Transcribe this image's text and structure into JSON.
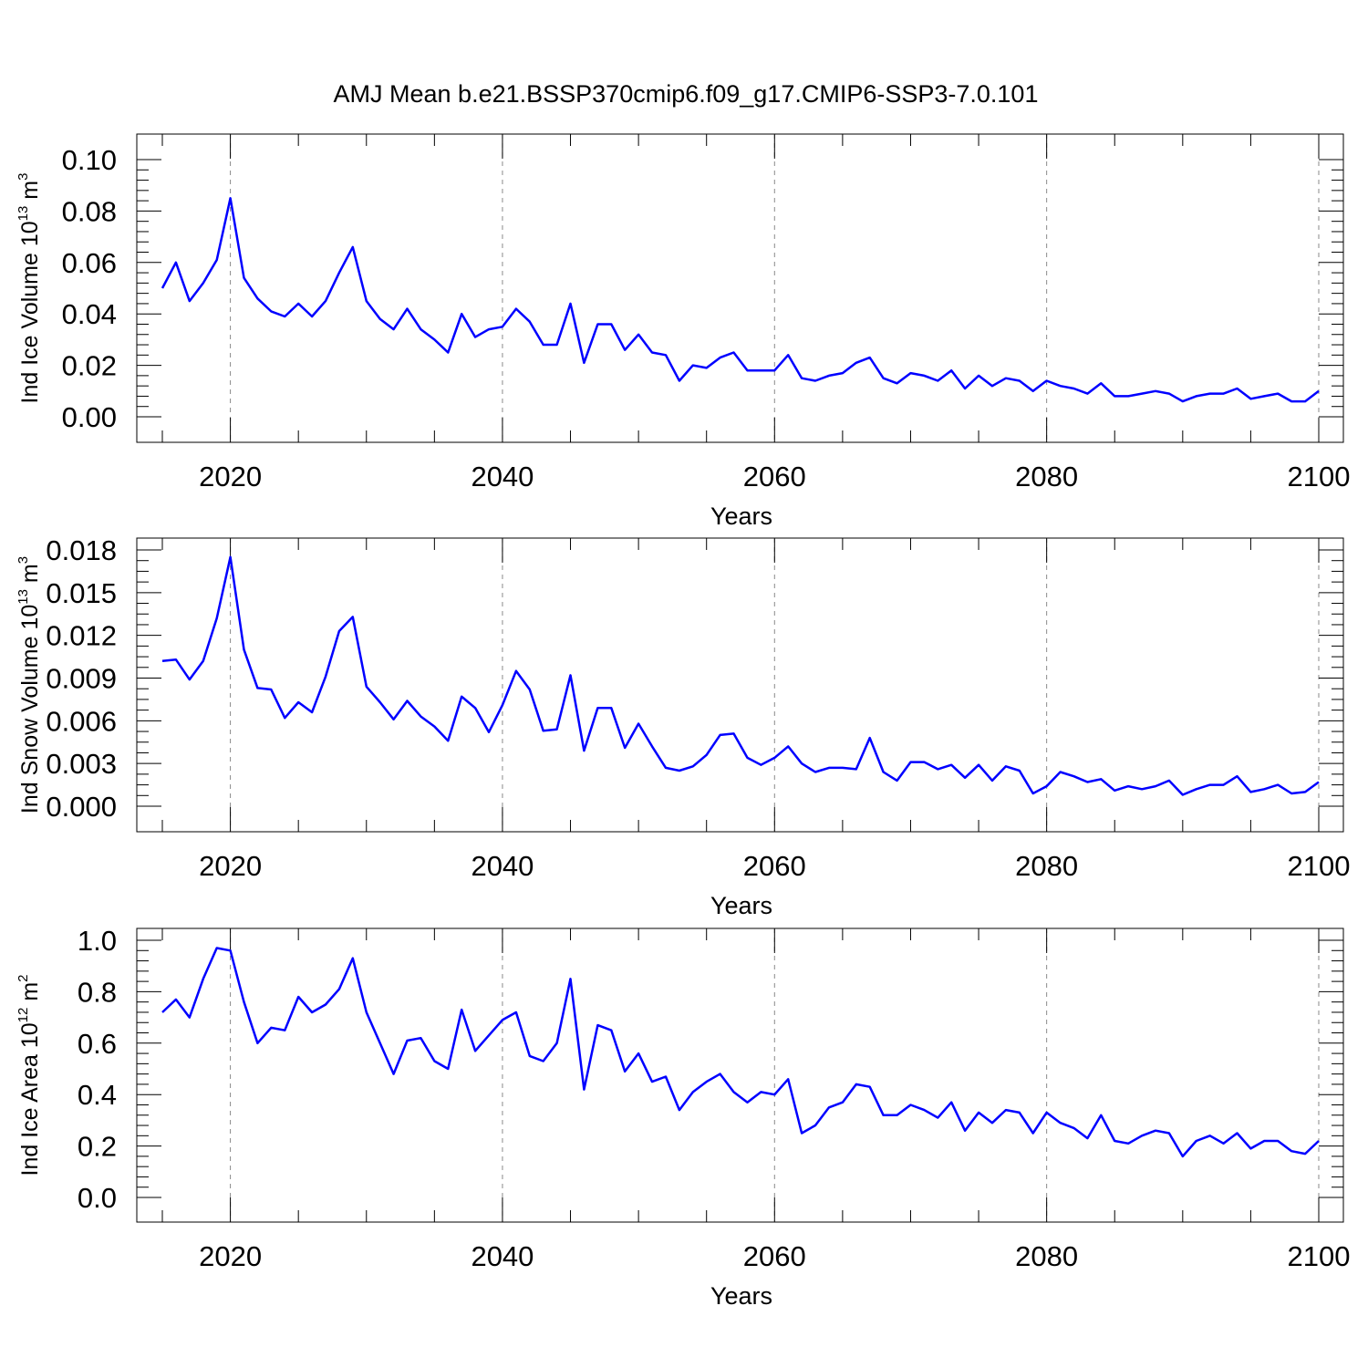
{
  "title": "AMJ Mean b.e21.BSSP370cmip6.f09_g17.CMIP6-SSP3-7.0.101",
  "chart_data": [
    {
      "type": "line",
      "ylabel": {
        "main": "Ind Ice Volume 10",
        "exp": "13",
        "unit": " m",
        "unit_exp": "3"
      },
      "xlabel": "Years",
      "xlim": [
        2015,
        2100
      ],
      "ylim": [
        0,
        0.1
      ],
      "yticks": [
        "0.00",
        "0.02",
        "0.04",
        "0.06",
        "0.08",
        "0.10"
      ],
      "xticks": [
        "2020",
        "2040",
        "2060",
        "2080",
        "2100"
      ],
      "grid": "vertical dashed at major x ticks",
      "line_color": "#0000ff",
      "x_start": 2015,
      "values": [
        0.05,
        0.06,
        0.045,
        0.052,
        0.061,
        0.085,
        0.054,
        0.046,
        0.041,
        0.039,
        0.044,
        0.039,
        0.045,
        0.056,
        0.066,
        0.045,
        0.038,
        0.034,
        0.042,
        0.034,
        0.03,
        0.025,
        0.04,
        0.031,
        0.034,
        0.035,
        0.042,
        0.037,
        0.028,
        0.028,
        0.044,
        0.021,
        0.036,
        0.036,
        0.026,
        0.032,
        0.025,
        0.024,
        0.014,
        0.02,
        0.019,
        0.023,
        0.025,
        0.018,
        0.018,
        0.018,
        0.024,
        0.015,
        0.014,
        0.016,
        0.017,
        0.021,
        0.023,
        0.015,
        0.013,
        0.017,
        0.016,
        0.014,
        0.018,
        0.011,
        0.016,
        0.012,
        0.015,
        0.014,
        0.01,
        0.014,
        0.012,
        0.011,
        0.009,
        0.013,
        0.008,
        0.008,
        0.009,
        0.01,
        0.009,
        0.006,
        0.008,
        0.009,
        0.009,
        0.011,
        0.007,
        0.008,
        0.009,
        0.006,
        0.006,
        0.01
      ]
    },
    {
      "type": "line",
      "ylabel": {
        "main": "Ind Snow Volume 10",
        "exp": "13",
        "unit": " m",
        "unit_exp": "3"
      },
      "xlabel": "Years",
      "xlim": [
        2015,
        2100
      ],
      "ylim": [
        0,
        0.018
      ],
      "yticks": [
        "0.000",
        "0.003",
        "0.006",
        "0.009",
        "0.012",
        "0.015",
        "0.018"
      ],
      "xticks": [
        "2020",
        "2040",
        "2060",
        "2080",
        "2100"
      ],
      "grid": "vertical dashed at major x ticks",
      "line_color": "#0000ff",
      "x_start": 2015,
      "values": [
        0.0102,
        0.0103,
        0.0089,
        0.0102,
        0.0132,
        0.0175,
        0.011,
        0.0083,
        0.0082,
        0.0062,
        0.0073,
        0.0066,
        0.0091,
        0.0123,
        0.0133,
        0.0084,
        0.0073,
        0.0061,
        0.0074,
        0.0063,
        0.0056,
        0.0046,
        0.0077,
        0.0069,
        0.0052,
        0.0071,
        0.0095,
        0.0082,
        0.0053,
        0.0054,
        0.0092,
        0.0039,
        0.0069,
        0.0069,
        0.0041,
        0.0058,
        0.0042,
        0.0027,
        0.0025,
        0.0028,
        0.0036,
        0.005,
        0.0051,
        0.0034,
        0.0029,
        0.0034,
        0.0042,
        0.003,
        0.0024,
        0.0027,
        0.0027,
        0.0026,
        0.0048,
        0.0024,
        0.0018,
        0.0031,
        0.0031,
        0.0026,
        0.0029,
        0.002,
        0.0029,
        0.0018,
        0.0028,
        0.0025,
        0.0009,
        0.0014,
        0.0024,
        0.0021,
        0.0017,
        0.0019,
        0.0011,
        0.0014,
        0.0012,
        0.0014,
        0.0018,
        0.0008,
        0.0012,
        0.0015,
        0.0015,
        0.0021,
        0.001,
        0.0012,
        0.0015,
        0.0009,
        0.001,
        0.0017
      ]
    },
    {
      "type": "line",
      "ylabel": {
        "main": "Ind Ice Area 10",
        "exp": "12",
        "unit": " m",
        "unit_exp": "2"
      },
      "xlabel": "Years",
      "xlim": [
        2015,
        2100
      ],
      "ylim": [
        0,
        1.0
      ],
      "yticks": [
        "0.0",
        "0.2",
        "0.4",
        "0.6",
        "0.8",
        "1.0"
      ],
      "xticks": [
        "2020",
        "2040",
        "2060",
        "2080",
        "2100"
      ],
      "grid": "vertical dashed at major x ticks",
      "line_color": "#0000ff",
      "x_start": 2015,
      "values": [
        0.72,
        0.77,
        0.7,
        0.85,
        0.97,
        0.96,
        0.76,
        0.6,
        0.66,
        0.65,
        0.78,
        0.72,
        0.75,
        0.81,
        0.93,
        0.72,
        0.6,
        0.48,
        0.61,
        0.62,
        0.53,
        0.5,
        0.73,
        0.57,
        0.63,
        0.69,
        0.72,
        0.55,
        0.53,
        0.6,
        0.85,
        0.42,
        0.67,
        0.65,
        0.49,
        0.56,
        0.45,
        0.47,
        0.34,
        0.41,
        0.45,
        0.48,
        0.41,
        0.37,
        0.41,
        0.4,
        0.46,
        0.25,
        0.28,
        0.35,
        0.37,
        0.44,
        0.43,
        0.32,
        0.32,
        0.36,
        0.34,
        0.31,
        0.37,
        0.26,
        0.33,
        0.29,
        0.34,
        0.33,
        0.25,
        0.33,
        0.29,
        0.27,
        0.23,
        0.32,
        0.22,
        0.21,
        0.24,
        0.26,
        0.25,
        0.16,
        0.22,
        0.24,
        0.21,
        0.25,
        0.19,
        0.22,
        0.22,
        0.18,
        0.17,
        0.22
      ]
    }
  ]
}
